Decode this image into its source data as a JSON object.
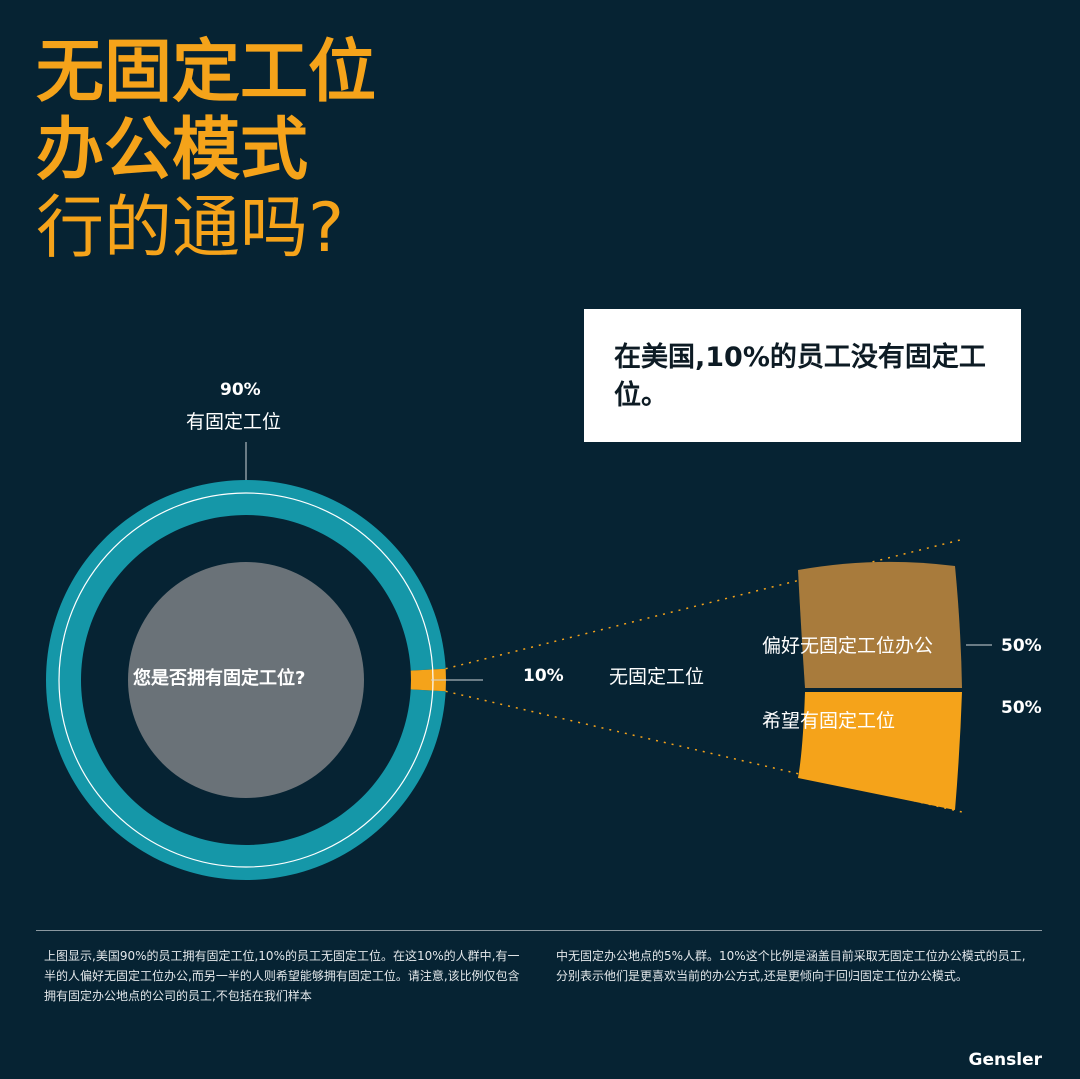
{
  "title": {
    "line1": "无固定工位",
    "line2": "办公模式",
    "line3": "行的通吗?"
  },
  "callout": "在美国,10%的员工没有固定工位。",
  "chart_data": {
    "type": "pie",
    "center_question": "您是否拥有固定工位?",
    "slices": [
      {
        "label": "有固定工位",
        "value": 90,
        "value_label": "90%",
        "color": "#1597a8"
      },
      {
        "label": "无固定工位",
        "value": 10,
        "value_label": "10%",
        "color": "#f5a31a"
      }
    ],
    "breakdown": {
      "of": "无固定工位",
      "segments": [
        {
          "label": "偏好无固定工位办公",
          "value": 50,
          "value_label": "50%",
          "color": "#a87b3c"
        },
        {
          "label": "希望有固定工位",
          "value": 50,
          "value_label": "50%",
          "color": "#f5a31a"
        }
      ]
    }
  },
  "footnote": {
    "col1": "上图显示,美国90%的员工拥有固定工位,10%的员工无固定工位。在这10%的人群中,有一半的人偏好无固定工位办公,而另一半的人则希望能够拥有固定工位。请注意,该比例仅包含拥有固定办公地点的公司的员工,不包括在我们样本",
    "col2": "中无固定办公地点的5%人群。10%这个比例是涵盖目前采取无固定工位办公模式的员工,分别表示他们是更喜欢当前的办公方式,还是更倾向于回归固定工位办公模式。"
  },
  "brand": "Gensler",
  "colors": {
    "background": "#062333",
    "accent": "#f5a31a",
    "teal": "#1597a8",
    "inner": "#6a7278",
    "brown": "#a87b3c"
  }
}
